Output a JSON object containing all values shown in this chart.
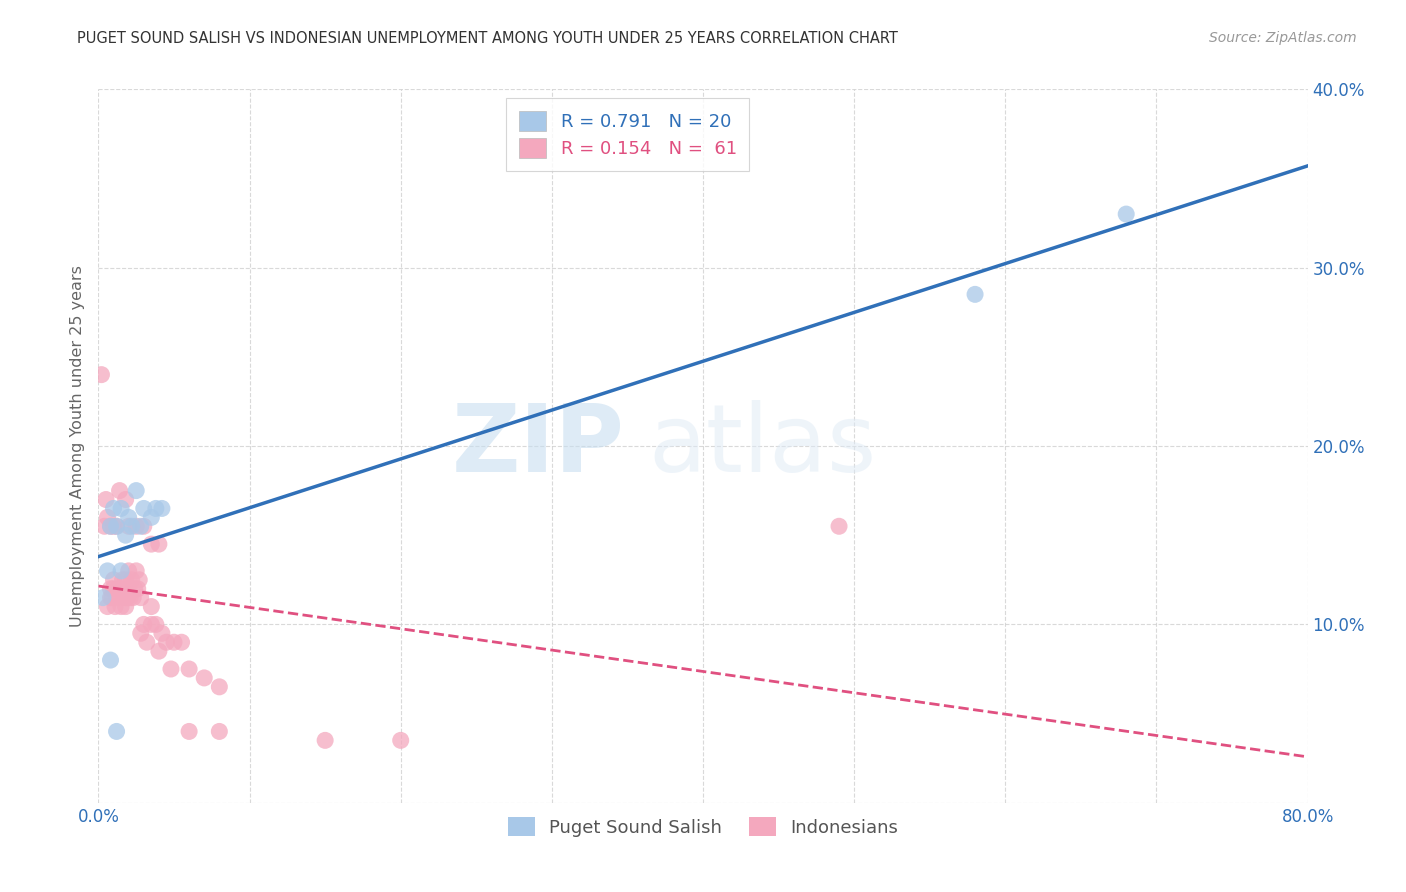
{
  "title": "PUGET SOUND SALISH VS INDONESIAN UNEMPLOYMENT AMONG YOUTH UNDER 25 YEARS CORRELATION CHART",
  "source": "Source: ZipAtlas.com",
  "ylabel": "Unemployment Among Youth under 25 years",
  "xlim": [
    0.0,
    0.8
  ],
  "ylim": [
    0.0,
    0.4
  ],
  "xticks": [
    0.0,
    0.1,
    0.2,
    0.3,
    0.4,
    0.5,
    0.6,
    0.7,
    0.8
  ],
  "xticklabels": [
    "0.0%",
    "",
    "",
    "",
    "",
    "",
    "",
    "",
    "80.0%"
  ],
  "yticks": [
    0.0,
    0.1,
    0.2,
    0.3,
    0.4
  ],
  "yticklabels": [
    "",
    "10.0%",
    "20.0%",
    "30.0%",
    "40.0%"
  ],
  "watermark_zip": "ZIP",
  "watermark_atlas": "atlas",
  "blue_R": "0.791",
  "blue_N": "20",
  "pink_R": "0.154",
  "pink_N": "61",
  "legend_label_blue": "Puget Sound Salish",
  "legend_label_pink": "Indonesians",
  "blue_color": "#a8c8e8",
  "pink_color": "#f4a8be",
  "blue_line_color": "#3070b8",
  "pink_line_color": "#e05080",
  "blue_scatter_x": [
    0.003,
    0.006,
    0.008,
    0.01,
    0.012,
    0.015,
    0.015,
    0.018,
    0.02,
    0.022,
    0.025,
    0.028,
    0.03,
    0.035,
    0.038,
    0.042,
    0.008,
    0.012,
    0.58,
    0.68
  ],
  "blue_scatter_y": [
    0.115,
    0.13,
    0.155,
    0.165,
    0.155,
    0.13,
    0.165,
    0.15,
    0.16,
    0.155,
    0.175,
    0.155,
    0.165,
    0.16,
    0.165,
    0.165,
    0.08,
    0.04,
    0.285,
    0.33
  ],
  "pink_scatter_x": [
    0.002,
    0.004,
    0.005,
    0.006,
    0.008,
    0.008,
    0.009,
    0.01,
    0.01,
    0.011,
    0.012,
    0.013,
    0.014,
    0.015,
    0.015,
    0.016,
    0.017,
    0.018,
    0.018,
    0.019,
    0.02,
    0.02,
    0.021,
    0.022,
    0.023,
    0.024,
    0.025,
    0.026,
    0.027,
    0.028,
    0.028,
    0.03,
    0.032,
    0.035,
    0.035,
    0.038,
    0.04,
    0.042,
    0.045,
    0.048,
    0.05,
    0.055,
    0.06,
    0.07,
    0.08,
    0.006,
    0.008,
    0.01,
    0.012,
    0.014,
    0.018,
    0.02,
    0.025,
    0.03,
    0.035,
    0.04,
    0.06,
    0.08,
    0.15,
    0.2,
    0.49
  ],
  "pink_scatter_y": [
    0.24,
    0.155,
    0.17,
    0.11,
    0.115,
    0.12,
    0.115,
    0.125,
    0.12,
    0.11,
    0.115,
    0.12,
    0.12,
    0.12,
    0.11,
    0.125,
    0.115,
    0.125,
    0.11,
    0.115,
    0.13,
    0.12,
    0.115,
    0.125,
    0.115,
    0.12,
    0.13,
    0.12,
    0.125,
    0.095,
    0.115,
    0.1,
    0.09,
    0.1,
    0.11,
    0.1,
    0.085,
    0.095,
    0.09,
    0.075,
    0.09,
    0.09,
    0.075,
    0.07,
    0.065,
    0.16,
    0.155,
    0.155,
    0.155,
    0.175,
    0.17,
    0.155,
    0.155,
    0.155,
    0.145,
    0.145,
    0.04,
    0.04,
    0.035,
    0.035,
    0.155
  ],
  "background_color": "#ffffff",
  "grid_color": "#d0d0d0"
}
